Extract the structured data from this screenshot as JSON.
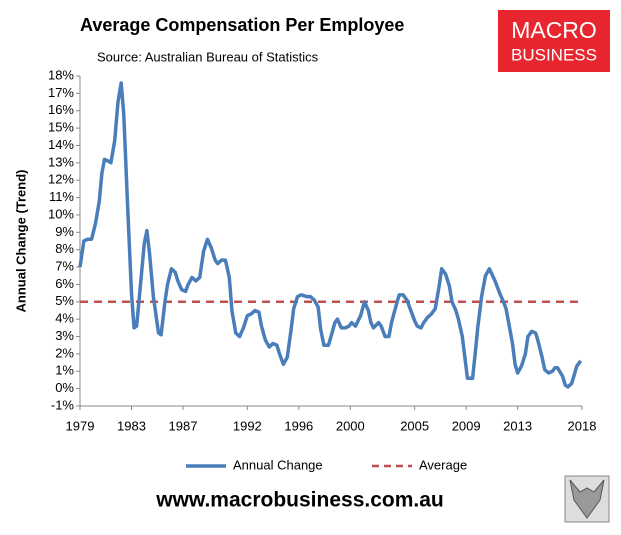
{
  "chart_data": {
    "type": "line",
    "title": "Average Compensation Per Employee",
    "subtitle": "Source: Australian Bureau of Statistics",
    "ylabel": "Annual Change (Trend)",
    "logo": {
      "top": "MACRO",
      "bottom": "BUSINESS"
    },
    "footer": "www.macrobusiness.com.au",
    "xlim": [
      1979,
      2018
    ],
    "xticks": [
      1979,
      1983,
      1987,
      1992,
      1996,
      2000,
      2005,
      2009,
      2013,
      2018
    ],
    "ylim": [
      -1,
      18
    ],
    "yticks": [
      {
        "value": -1,
        "label": "-1%"
      },
      {
        "value": 0,
        "label": "0%"
      },
      {
        "value": 1,
        "label": "1%"
      },
      {
        "value": 2,
        "label": "2%"
      },
      {
        "value": 3,
        "label": "3%"
      },
      {
        "value": 4,
        "label": "4%"
      },
      {
        "value": 5,
        "label": "5%"
      },
      {
        "value": 6,
        "label": "6%"
      },
      {
        "value": 7,
        "label": "7%"
      },
      {
        "value": 8,
        "label": "8%"
      },
      {
        "value": 9,
        "label": "9%"
      },
      {
        "value": 10,
        "label": "10%"
      },
      {
        "value": 11,
        "label": "11%"
      },
      {
        "value": 12,
        "label": "12%"
      },
      {
        "value": 13,
        "label": "13%"
      },
      {
        "value": 14,
        "label": "14%"
      },
      {
        "value": 15,
        "label": "15%"
      },
      {
        "value": 16,
        "label": "16%"
      },
      {
        "value": 17,
        "label": "17%"
      },
      {
        "value": 18,
        "label": "18%"
      }
    ],
    "legend": "bottom",
    "series": [
      {
        "name": "Annual Change",
        "color": "#4a7ebb",
        "dash": false,
        "x": [
          1979.0,
          1979.3,
          1979.6,
          1979.9,
          1980.2,
          1980.5,
          1980.7,
          1980.9,
          1981.2,
          1981.4,
          1981.7,
          1981.95,
          1982.2,
          1982.4,
          1982.7,
          1983.0,
          1983.2,
          1983.4,
          1983.7,
          1984.0,
          1984.2,
          1984.4,
          1984.7,
          1985.1,
          1985.3,
          1985.6,
          1985.8,
          1986.1,
          1986.4,
          1986.6,
          1986.9,
          1987.2,
          1987.4,
          1987.7,
          1988.0,
          1988.3,
          1988.6,
          1988.9,
          1989.2,
          1989.5,
          1989.7,
          1990.0,
          1990.3,
          1990.6,
          1990.8,
          1991.1,
          1991.4,
          1991.7,
          1992.0,
          1992.3,
          1992.6,
          1992.9,
          1993.1,
          1993.4,
          1993.7,
          1994.0,
          1994.3,
          1994.5,
          1994.8,
          1995.1,
          1995.4,
          1995.6,
          1995.9,
          1996.2,
          1996.6,
          1996.9,
          1997.2,
          1997.5,
          1997.7,
          1997.95,
          1998.3,
          1998.5,
          1998.8,
          1999.0,
          1999.3,
          1999.6,
          1999.9,
          2000.1,
          2000.4,
          2000.8,
          2001.1,
          2001.4,
          2001.6,
          2001.8,
          2002.2,
          2002.4,
          2002.7,
          2003.0,
          2003.2,
          2003.6,
          2003.8,
          2004.1,
          2004.4,
          2004.6,
          2005.0,
          2005.2,
          2005.5,
          2005.7,
          2006.0,
          2006.3,
          2006.6,
          2006.9,
          2007.1,
          2007.4,
          2007.7,
          2007.9,
          2008.2,
          2008.4,
          2008.7,
          2008.9,
          2009.1,
          2009.5,
          2009.7,
          2009.9,
          2010.2,
          2010.5,
          2010.8,
          2011.0,
          2011.3,
          2011.6,
          2011.9,
          2012.1,
          2012.3,
          2012.6,
          2012.8,
          2013.0,
          2013.3,
          2013.6,
          2013.8,
          2014.1,
          2014.4,
          2014.6,
          2014.9,
          2015.1,
          2015.4,
          2015.7,
          2015.9,
          2016.1,
          2016.5,
          2016.7,
          2016.9,
          2017.2,
          2017.4,
          2017.6,
          2017.9
        ],
        "values": [
          7.0,
          8.5,
          8.6,
          8.6,
          9.5,
          10.8,
          12.4,
          13.2,
          13.1,
          13.0,
          14.3,
          16.5,
          17.6,
          15.8,
          10.5,
          5.5,
          3.5,
          3.6,
          6.0,
          8.4,
          9.1,
          7.8,
          5.3,
          3.2,
          3.1,
          5.0,
          6.0,
          6.9,
          6.7,
          6.2,
          5.7,
          5.6,
          6.0,
          6.4,
          6.2,
          6.4,
          7.9,
          8.6,
          8.1,
          7.4,
          7.2,
          7.4,
          7.4,
          6.4,
          4.5,
          3.2,
          3.0,
          3.5,
          4.2,
          4.3,
          4.5,
          4.4,
          3.6,
          2.8,
          2.4,
          2.6,
          2.5,
          2.0,
          1.4,
          1.8,
          3.4,
          4.6,
          5.3,
          5.4,
          5.3,
          5.3,
          5.1,
          4.7,
          3.4,
          2.5,
          2.5,
          3.0,
          3.8,
          4.0,
          3.5,
          3.5,
          3.6,
          3.8,
          3.6,
          4.2,
          5.0,
          4.5,
          3.8,
          3.5,
          3.8,
          3.6,
          3.0,
          3.0,
          3.8,
          4.9,
          5.4,
          5.4,
          5.1,
          4.7,
          3.9,
          3.6,
          3.5,
          3.8,
          4.1,
          4.3,
          4.6,
          5.9,
          6.9,
          6.6,
          5.9,
          5.0,
          4.5,
          4.0,
          3.0,
          1.8,
          0.6,
          0.6,
          2.0,
          3.5,
          5.3,
          6.5,
          6.9,
          6.6,
          6.1,
          5.5,
          5.0,
          4.6,
          3.8,
          2.6,
          1.4,
          0.9,
          1.3,
          2.0,
          3.0,
          3.3,
          3.2,
          2.7,
          1.8,
          1.1,
          0.9,
          1.0,
          1.2,
          1.2,
          0.7,
          0.2,
          0.1,
          0.3,
          0.8,
          1.3,
          1.6
        ]
      },
      {
        "name": "Average",
        "color": "#c0504d",
        "dash": true,
        "x": [
          1979,
          2018
        ],
        "values": [
          5,
          5
        ]
      }
    ]
  }
}
